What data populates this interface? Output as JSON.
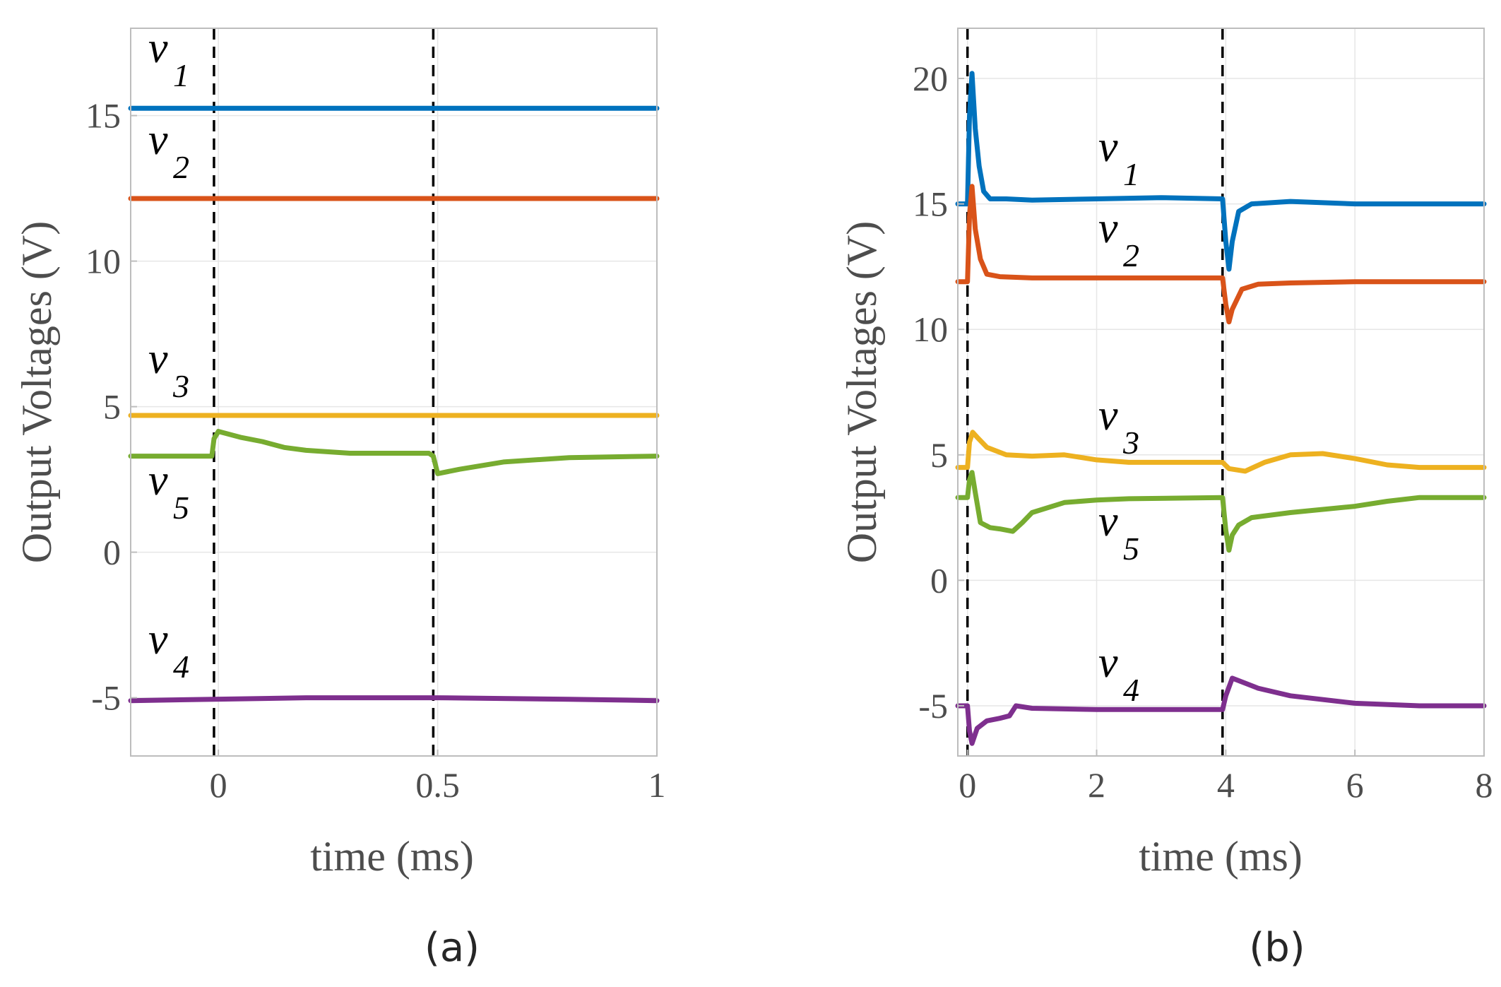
{
  "chart_data": [
    {
      "type": "line",
      "panel_label": "(a)",
      "xlabel": "time (ms)",
      "ylabel": "Output Voltages (V)",
      "xlim": [
        -0.2,
        1.0
      ],
      "ylim": [
        -7,
        18
      ],
      "xticks": [
        0,
        0.5,
        1
      ],
      "xtick_labels": [
        "0",
        "0.5",
        "1"
      ],
      "yticks": [
        -5,
        0,
        5,
        10,
        15
      ],
      "ytick_labels": [
        "-5",
        "0",
        "5",
        "10",
        "15"
      ],
      "grid": true,
      "vlines": [
        -0.01,
        0.49
      ],
      "series": [
        {
          "name": "v1",
          "color": "#0072BD",
          "x": [
            -0.2,
            1.0
          ],
          "y": [
            15.25,
            15.25
          ]
        },
        {
          "name": "v2",
          "color": "#D95319",
          "x": [
            -0.2,
            1.0
          ],
          "y": [
            12.15,
            12.15
          ]
        },
        {
          "name": "v3",
          "color": "#EDB120",
          "x": [
            -0.2,
            1.0
          ],
          "y": [
            4.7,
            4.7
          ]
        },
        {
          "name": "v4",
          "color": "#7E2F8E",
          "x": [
            -0.2,
            0.2,
            0.5,
            0.8,
            1.0
          ],
          "y": [
            -5.1,
            -5.0,
            -5.0,
            -5.05,
            -5.1
          ]
        },
        {
          "name": "v5",
          "color": "#77AC30",
          "x": [
            -0.2,
            -0.015,
            -0.01,
            0.0,
            0.05,
            0.1,
            0.15,
            0.2,
            0.3,
            0.45,
            0.48,
            0.49,
            0.5,
            0.55,
            0.65,
            0.8,
            1.0
          ],
          "y": [
            3.3,
            3.3,
            3.9,
            4.15,
            3.95,
            3.8,
            3.6,
            3.5,
            3.4,
            3.4,
            3.4,
            3.3,
            2.7,
            2.85,
            3.1,
            3.25,
            3.3
          ]
        }
      ],
      "annotations": [
        {
          "text": "v",
          "sub": "1"
        },
        {
          "text": "v",
          "sub": "2"
        },
        {
          "text": "v",
          "sub": "3"
        },
        {
          "text": "v",
          "sub": "5"
        },
        {
          "text": "v",
          "sub": "4"
        }
      ]
    },
    {
      "type": "line",
      "panel_label": "(b)",
      "xlabel": "time (ms)",
      "ylabel": "Output Voltages (V)",
      "xlim": [
        -0.15,
        8.0
      ],
      "ylim": [
        -7,
        22
      ],
      "xticks": [
        0,
        2,
        4,
        6,
        8
      ],
      "xtick_labels": [
        "0",
        "2",
        "4",
        "6",
        "8"
      ],
      "yticks": [
        -5,
        0,
        5,
        10,
        15,
        20
      ],
      "ytick_labels": [
        "-5",
        "0",
        "5",
        "10",
        "15",
        "20"
      ],
      "grid": true,
      "vlines": [
        0.0,
        3.95
      ],
      "series": [
        {
          "name": "v1",
          "color": "#0072BD",
          "x": [
            -0.15,
            0.0,
            0.03,
            0.07,
            0.12,
            0.18,
            0.25,
            0.35,
            0.6,
            1.0,
            2.0,
            3.0,
            3.95,
            4.0,
            4.05,
            4.1,
            4.2,
            4.4,
            5.0,
            6.0,
            8.0
          ],
          "y": [
            15.0,
            15.0,
            18.5,
            20.2,
            18.0,
            16.5,
            15.5,
            15.2,
            15.2,
            15.15,
            15.2,
            15.25,
            15.2,
            13.5,
            12.4,
            13.5,
            14.7,
            15.0,
            15.1,
            15.0,
            15.0
          ]
        },
        {
          "name": "v2",
          "color": "#D95319",
          "x": [
            -0.15,
            0.0,
            0.03,
            0.07,
            0.12,
            0.2,
            0.3,
            0.5,
            1.0,
            2.0,
            3.95,
            4.0,
            4.05,
            4.1,
            4.25,
            4.5,
            5.0,
            6.0,
            8.0
          ],
          "y": [
            11.9,
            11.9,
            14.5,
            15.7,
            14.0,
            12.8,
            12.2,
            12.1,
            12.05,
            12.05,
            12.05,
            11.0,
            10.3,
            10.8,
            11.6,
            11.8,
            11.85,
            11.9,
            11.9
          ]
        },
        {
          "name": "v3",
          "color": "#EDB120",
          "x": [
            -0.15,
            0.0,
            0.03,
            0.08,
            0.15,
            0.3,
            0.6,
            1.0,
            1.5,
            2.0,
            2.5,
            3.95,
            4.05,
            4.3,
            4.6,
            5.0,
            5.5,
            6.0,
            6.5,
            7.0,
            8.0
          ],
          "y": [
            4.5,
            4.5,
            5.5,
            5.9,
            5.7,
            5.3,
            5.0,
            4.95,
            5.0,
            4.8,
            4.7,
            4.7,
            4.45,
            4.35,
            4.7,
            5.0,
            5.05,
            4.85,
            4.6,
            4.5,
            4.5
          ]
        },
        {
          "name": "v4",
          "color": "#7E2F8E",
          "x": [
            -0.15,
            0.0,
            0.03,
            0.07,
            0.15,
            0.3,
            0.5,
            0.65,
            0.75,
            1.0,
            2.0,
            3.95,
            4.0,
            4.1,
            4.2,
            4.5,
            5.0,
            6.0,
            7.0,
            8.0
          ],
          "y": [
            -5.0,
            -5.0,
            -6.0,
            -6.5,
            -5.9,
            -5.6,
            -5.5,
            -5.4,
            -5.0,
            -5.1,
            -5.15,
            -5.15,
            -4.6,
            -3.9,
            -4.0,
            -4.3,
            -4.6,
            -4.9,
            -5.0,
            -5.0
          ]
        },
        {
          "name": "v5",
          "color": "#77AC30",
          "x": [
            -0.15,
            0.0,
            0.03,
            0.07,
            0.12,
            0.2,
            0.35,
            0.5,
            0.7,
            0.85,
            1.0,
            1.5,
            2.0,
            2.5,
            3.95,
            4.0,
            4.05,
            4.1,
            4.2,
            4.4,
            5.0,
            6.0,
            6.5,
            7.0,
            8.0
          ],
          "y": [
            3.3,
            3.3,
            4.0,
            4.3,
            3.5,
            2.3,
            2.1,
            2.05,
            1.95,
            2.3,
            2.7,
            3.1,
            3.2,
            3.25,
            3.3,
            2.0,
            1.2,
            1.8,
            2.2,
            2.5,
            2.7,
            2.95,
            3.15,
            3.3,
            3.3
          ]
        }
      ],
      "annotations": [
        {
          "text": "v",
          "sub": "1"
        },
        {
          "text": "v",
          "sub": "2"
        },
        {
          "text": "v",
          "sub": "3"
        },
        {
          "text": "v",
          "sub": "5"
        },
        {
          "text": "v",
          "sub": "4"
        }
      ]
    }
  ]
}
